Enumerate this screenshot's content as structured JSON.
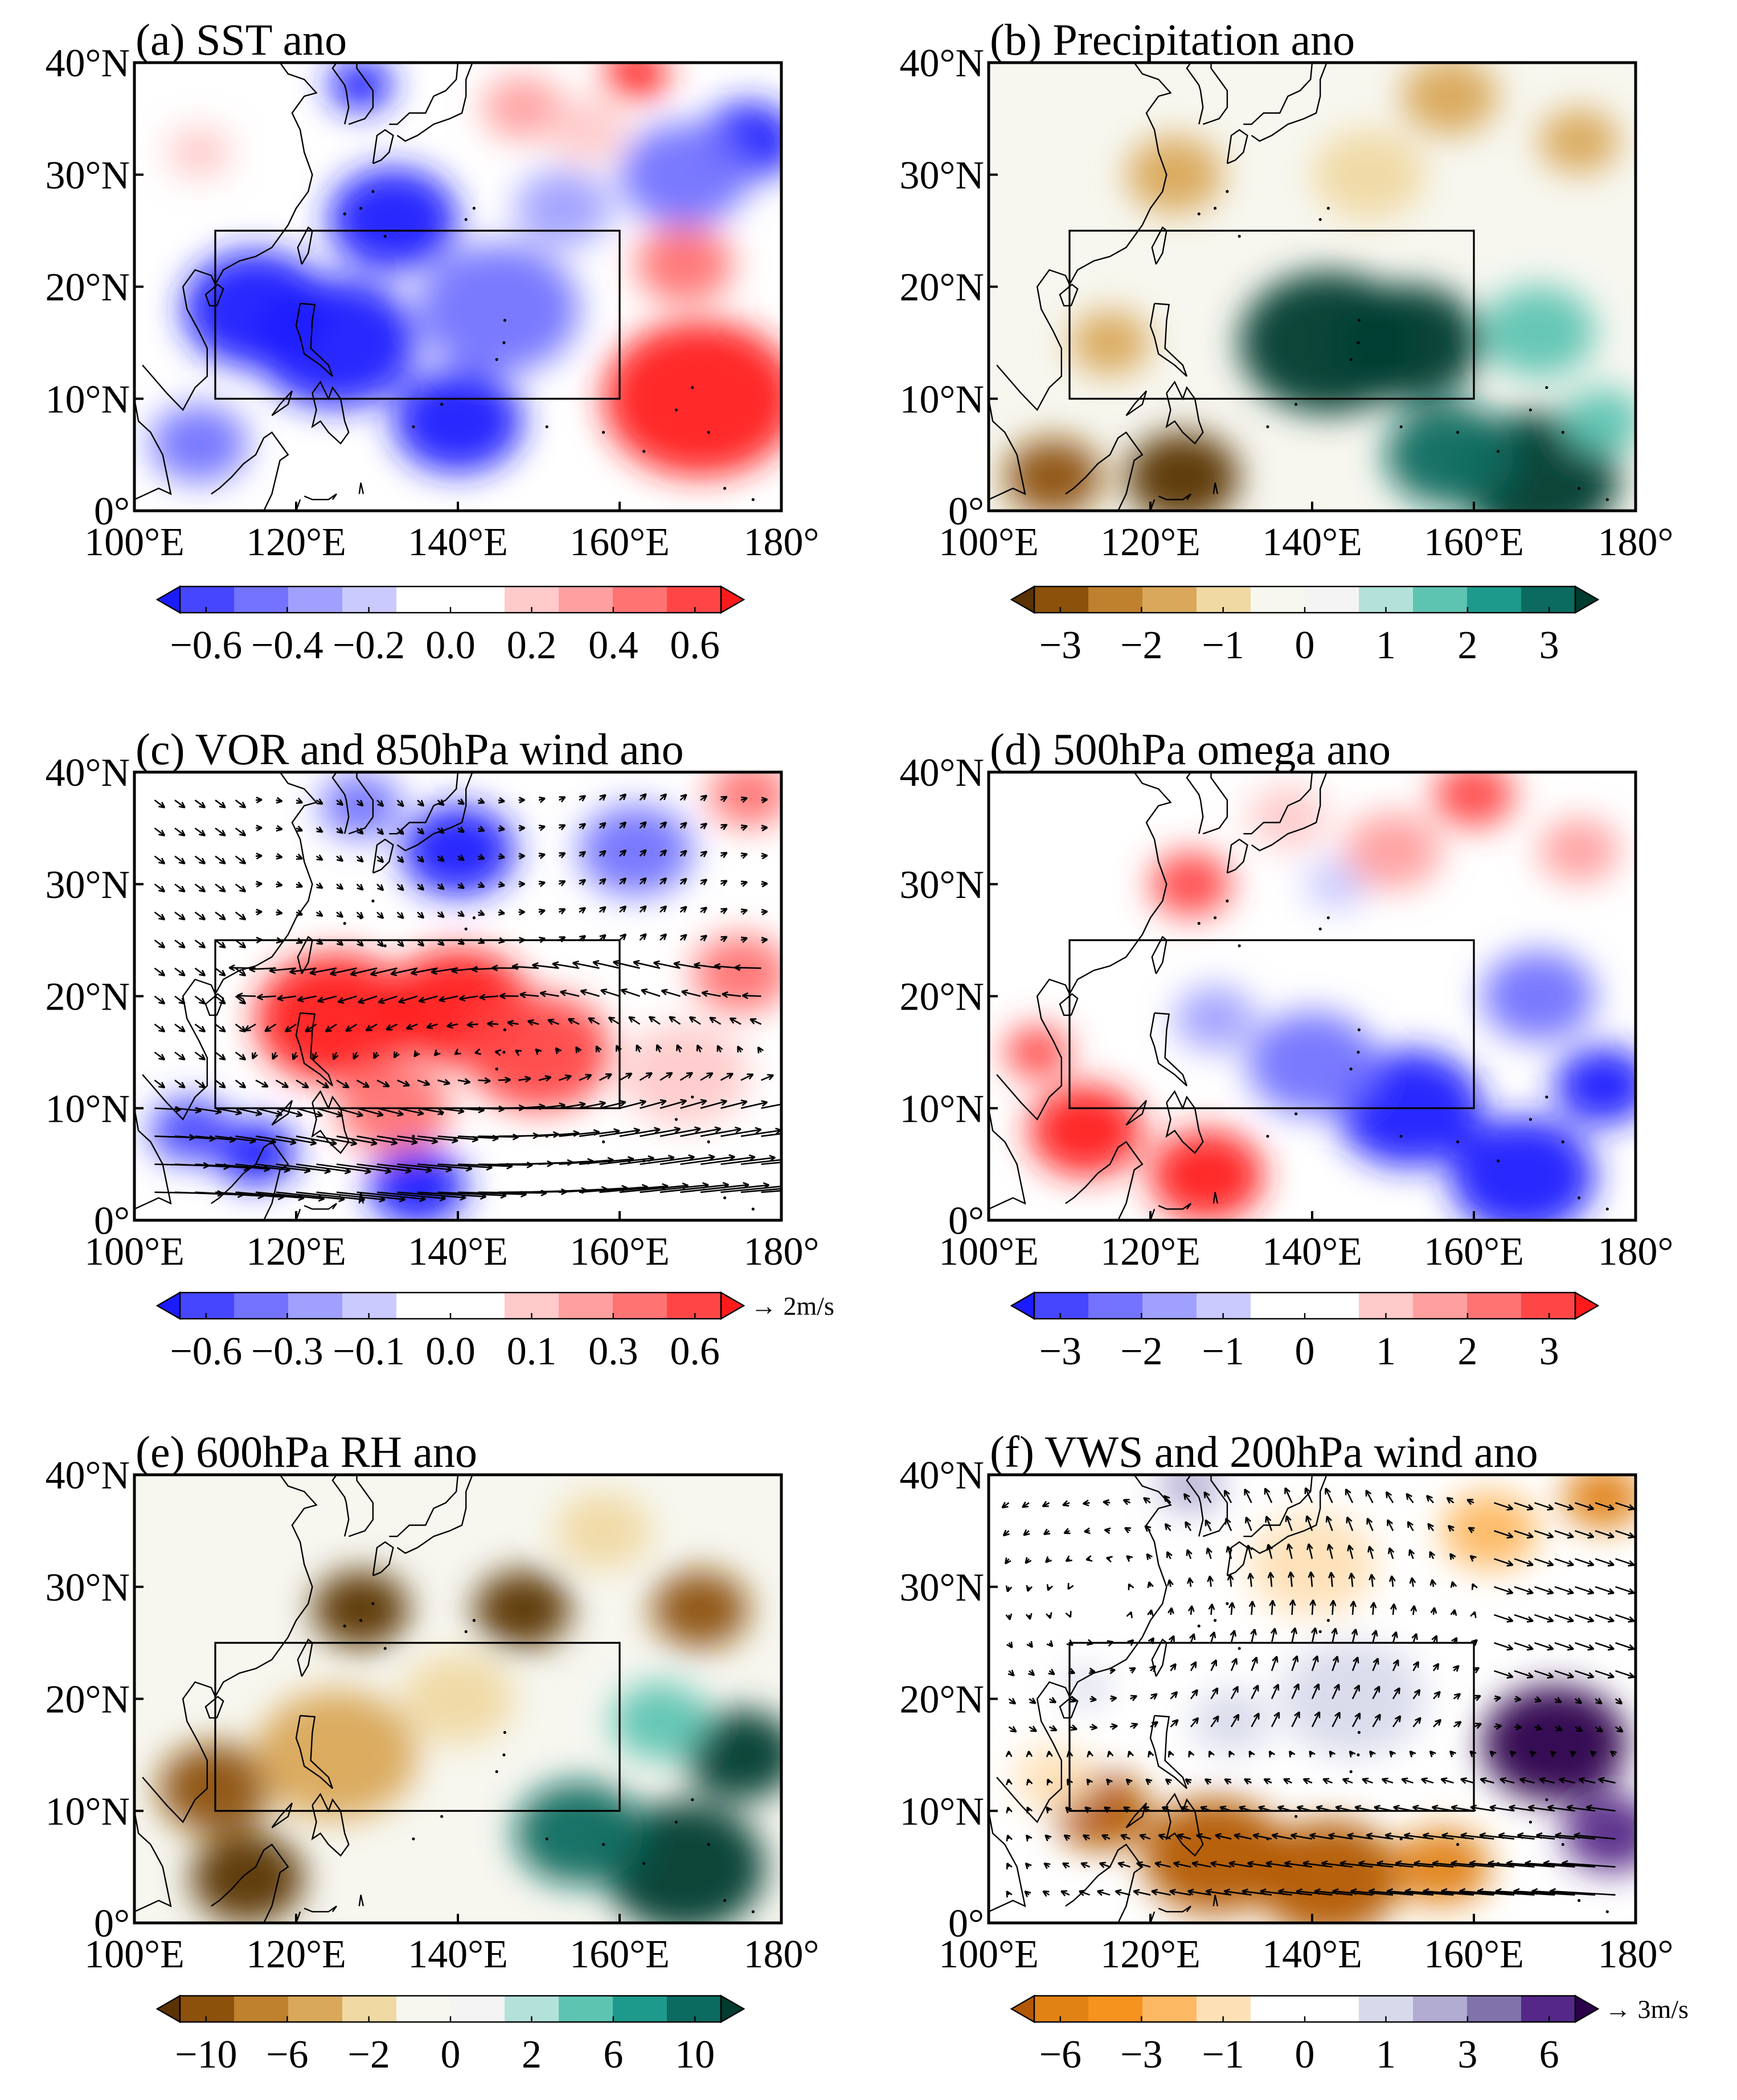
{
  "chart_data": [
    {
      "panel": "a",
      "type": "heatmap",
      "title": "(a) SST ano",
      "x_ticks": [
        "100°E",
        "120°E",
        "140°E",
        "160°E",
        "180°"
      ],
      "y_ticks": [
        "0°",
        "10°N",
        "20°N",
        "30°N",
        "40°N"
      ],
      "xlim": [
        100,
        180
      ],
      "ylim": [
        0,
        40
      ],
      "box": {
        "lon": [
          110,
          160
        ],
        "lat": [
          10,
          25
        ]
      },
      "colorbar": {
        "ticks": [
          "−0.6",
          "−0.4",
          "−0.2",
          "0.0",
          "0.2",
          "0.4",
          "0.6"
        ],
        "colors": [
          "#1b1bff",
          "#4646ff",
          "#7373ff",
          "#a0a0ff",
          "#cacaff",
          "#ffffff",
          "#ffffff",
          "#ffcaca",
          "#ffa0a0",
          "#ff7373",
          "#ff4646",
          "#ff1b1b"
        ]
      },
      "field": [
        {
          "lon": 115,
          "lat": 18,
          "value": -0.7,
          "r": 9
        },
        {
          "lon": 125,
          "lat": 15,
          "value": -0.8,
          "r": 10
        },
        {
          "lon": 132,
          "lat": 26,
          "value": -0.7,
          "r": 8
        },
        {
          "lon": 128,
          "lat": 38,
          "value": -0.8,
          "r": 4
        },
        {
          "lon": 140,
          "lat": 8,
          "value": -0.6,
          "r": 8
        },
        {
          "lon": 145,
          "lat": 18,
          "value": -0.4,
          "r": 10
        },
        {
          "lon": 108,
          "lat": 6,
          "value": -0.4,
          "r": 6
        },
        {
          "lon": 153,
          "lat": 27,
          "value": -0.3,
          "r": 6
        },
        {
          "lon": 176,
          "lat": 33,
          "value": -0.6,
          "r": 6
        },
        {
          "lon": 168,
          "lat": 30,
          "value": -0.4,
          "r": 8
        },
        {
          "lon": 148,
          "lat": 36,
          "value": 0.3,
          "r": 5
        },
        {
          "lon": 162,
          "lat": 39,
          "value": 0.6,
          "r": 4
        },
        {
          "lon": 156,
          "lat": 34,
          "value": 0.2,
          "r": 5
        },
        {
          "lon": 170,
          "lat": 10,
          "value": 0.75,
          "r": 12
        },
        {
          "lon": 168,
          "lat": 22,
          "value": 0.35,
          "r": 6
        },
        {
          "lon": 108,
          "lat": 32,
          "value": 0.2,
          "r": 4
        }
      ]
    },
    {
      "panel": "b",
      "type": "heatmap",
      "title": "(b) Precipitation ano",
      "x_ticks": [
        "100°E",
        "120°E",
        "140°E",
        "160°E",
        "180°"
      ],
      "y_ticks": [
        "0°",
        "10°N",
        "20°N",
        "30°N",
        "40°N"
      ],
      "xlim": [
        100,
        180
      ],
      "ylim": [
        0,
        40
      ],
      "box": {
        "lon": [
          110,
          160
        ],
        "lat": [
          10,
          25
        ]
      },
      "colorbar": {
        "ticks": [
          "−3",
          "−2",
          "−1",
          "0",
          "1",
          "2",
          "3"
        ],
        "colors": [
          "#5a3204",
          "#8c510a",
          "#bf812d",
          "#d9a85a",
          "#f0d9a3",
          "#f7f7f0",
          "#f4f4f4",
          "#b3e2db",
          "#5ec4b2",
          "#1d9a8c",
          "#0b6b60",
          "#003c30"
        ]
      },
      "field": [
        {
          "lon": 142,
          "lat": 15,
          "value": 3.4,
          "r": 11
        },
        {
          "lon": 152,
          "lat": 15,
          "value": 3.2,
          "r": 9
        },
        {
          "lon": 168,
          "lat": 3,
          "value": 3.0,
          "r": 10
        },
        {
          "lon": 157,
          "lat": 5,
          "value": 2.5,
          "r": 8
        },
        {
          "lon": 168,
          "lat": 16,
          "value": 1.4,
          "r": 7
        },
        {
          "lon": 176,
          "lat": 8,
          "value": 1.2,
          "r": 5
        },
        {
          "lon": 124,
          "lat": 3,
          "value": -3.4,
          "r": 7
        },
        {
          "lon": 108,
          "lat": 3,
          "value": -2.4,
          "r": 6
        },
        {
          "lon": 115,
          "lat": 15,
          "value": -1.3,
          "r": 5
        },
        {
          "lon": 123,
          "lat": 30,
          "value": -1.2,
          "r": 6
        },
        {
          "lon": 157,
          "lat": 37,
          "value": -1.3,
          "r": 6
        },
        {
          "lon": 173,
          "lat": 33,
          "value": -1.2,
          "r": 5
        },
        {
          "lon": 147,
          "lat": 30,
          "value": -0.9,
          "r": 7
        }
      ]
    },
    {
      "panel": "c",
      "type": "heatmap",
      "title": "(c) VOR and 850hPa wind ano",
      "x_ticks": [
        "100°E",
        "120°E",
        "140°E",
        "160°E",
        "180°"
      ],
      "y_ticks": [
        "0°",
        "10°N",
        "20°N",
        "30°N",
        "40°N"
      ],
      "xlim": [
        100,
        180
      ],
      "ylim": [
        0,
        40
      ],
      "box": {
        "lon": [
          110,
          160
        ],
        "lat": [
          10,
          25
        ]
      },
      "wind_key": "→ 2m/s",
      "colorbar": {
        "ticks": [
          "−0.6",
          "−0.3",
          "−0.1",
          "0.0",
          "0.1",
          "0.3",
          "0.6"
        ],
        "colors": [
          "#1b1bff",
          "#4646ff",
          "#7373ff",
          "#a0a0ff",
          "#cacaff",
          "#ffffff",
          "#ffffff",
          "#ffcaca",
          "#ffa0a0",
          "#ff7373",
          "#ff4646",
          "#ff1b1b"
        ]
      },
      "field": [
        {
          "lon": 125,
          "lat": 18,
          "value": 0.7,
          "r": 10
        },
        {
          "lon": 140,
          "lat": 19,
          "value": 0.7,
          "r": 9
        },
        {
          "lon": 150,
          "lat": 15,
          "value": 0.5,
          "r": 9
        },
        {
          "lon": 132,
          "lat": 10,
          "value": 0.4,
          "r": 7
        },
        {
          "lon": 175,
          "lat": 22,
          "value": 0.35,
          "r": 6
        },
        {
          "lon": 168,
          "lat": 13,
          "value": 0.2,
          "r": 8
        },
        {
          "lon": 176,
          "lat": 38,
          "value": 0.35,
          "r": 5
        },
        {
          "lon": 115,
          "lat": 6,
          "value": -0.7,
          "r": 5
        },
        {
          "lon": 135,
          "lat": 3,
          "value": -0.7,
          "r": 6
        },
        {
          "lon": 107,
          "lat": 8,
          "value": -0.5,
          "r": 5
        },
        {
          "lon": 140,
          "lat": 33,
          "value": -0.6,
          "r": 7
        },
        {
          "lon": 128,
          "lat": 37,
          "value": -0.4,
          "r": 5
        },
        {
          "lon": 162,
          "lat": 33,
          "value": -0.4,
          "r": 7
        }
      ]
    },
    {
      "panel": "d",
      "type": "heatmap",
      "title": "(d) 500hPa omega ano",
      "x_ticks": [
        "100°E",
        "120°E",
        "140°E",
        "160°E",
        "180°"
      ],
      "y_ticks": [
        "0°",
        "10°N",
        "20°N",
        "30°N",
        "40°N"
      ],
      "xlim": [
        100,
        180
      ],
      "ylim": [
        0,
        40
      ],
      "box": {
        "lon": [
          110,
          160
        ],
        "lat": [
          10,
          25
        ]
      },
      "colorbar": {
        "ticks": [
          "−3",
          "−2",
          "−1",
          "0",
          "1",
          "2",
          "3"
        ],
        "colors": [
          "#1b1bff",
          "#4646ff",
          "#7373ff",
          "#a0a0ff",
          "#cacaff",
          "#ffffff",
          "#ffffff",
          "#ffcaca",
          "#ffa0a0",
          "#ff7373",
          "#ff4646",
          "#ff1b1b"
        ]
      },
      "field": [
        {
          "lon": 152,
          "lat": 10,
          "value": -3.4,
          "r": 9
        },
        {
          "lon": 166,
          "lat": 4,
          "value": -3.2,
          "r": 9
        },
        {
          "lon": 176,
          "lat": 12,
          "value": -3.0,
          "r": 6
        },
        {
          "lon": 140,
          "lat": 14,
          "value": -1.8,
          "r": 8
        },
        {
          "lon": 128,
          "lat": 18,
          "value": -1.5,
          "r": 5
        },
        {
          "lon": 168,
          "lat": 20,
          "value": -1.8,
          "r": 7
        },
        {
          "lon": 143,
          "lat": 30,
          "value": -0.9,
          "r": 4
        },
        {
          "lon": 112,
          "lat": 8,
          "value": 3.4,
          "r": 7
        },
        {
          "lon": 127,
          "lat": 4,
          "value": 3.2,
          "r": 7
        },
        {
          "lon": 106,
          "lat": 15,
          "value": 2.2,
          "r": 4
        },
        {
          "lon": 125,
          "lat": 30,
          "value": 2.5,
          "r": 5
        },
        {
          "lon": 160,
          "lat": 38,
          "value": 2.2,
          "r": 5
        },
        {
          "lon": 150,
          "lat": 33,
          "value": 1.2,
          "r": 6
        },
        {
          "lon": 173,
          "lat": 33,
          "value": 1.3,
          "r": 5
        },
        {
          "lon": 137,
          "lat": 36,
          "value": 1.0,
          "r": 5
        }
      ]
    },
    {
      "panel": "e",
      "type": "heatmap",
      "title": "(e) 600hPa RH ano",
      "x_ticks": [
        "100°E",
        "120°E",
        "140°E",
        "160°E",
        "180°"
      ],
      "y_ticks": [
        "0°",
        "10°N",
        "20°N",
        "30°N",
        "40°N"
      ],
      "xlim": [
        100,
        180
      ],
      "ylim": [
        0,
        40
      ],
      "box": {
        "lon": [
          110,
          160
        ],
        "lat": [
          10,
          25
        ]
      },
      "colorbar": {
        "ticks": [
          "−10",
          "−6",
          "−2",
          "0",
          "2",
          "6",
          "10"
        ],
        "colors": [
          "#5a3204",
          "#8c510a",
          "#bf812d",
          "#d9a85a",
          "#f0d9a3",
          "#f7f7f0",
          "#f4f4f4",
          "#b3e2db",
          "#5ec4b2",
          "#1d9a8c",
          "#0b6b60",
          "#003c30"
        ]
      },
      "field": [
        {
          "lon": 114,
          "lat": 4,
          "value": -10.5,
          "r": 7
        },
        {
          "lon": 110,
          "lat": 12,
          "value": -7.5,
          "r": 7
        },
        {
          "lon": 128,
          "lat": 28,
          "value": -9,
          "r": 6
        },
        {
          "lon": 148,
          "lat": 28,
          "value": -9,
          "r": 6
        },
        {
          "lon": 170,
          "lat": 28,
          "value": -7,
          "r": 6
        },
        {
          "lon": 125,
          "lat": 15,
          "value": -4,
          "r": 10
        },
        {
          "lon": 140,
          "lat": 20,
          "value": -3,
          "r": 7
        },
        {
          "lon": 158,
          "lat": 35,
          "value": -3,
          "r": 6
        },
        {
          "lon": 168,
          "lat": 5,
          "value": 11,
          "r": 10
        },
        {
          "lon": 175,
          "lat": 15,
          "value": 11,
          "r": 7
        },
        {
          "lon": 155,
          "lat": 8,
          "value": 7,
          "r": 8
        },
        {
          "lon": 165,
          "lat": 18,
          "value": 5,
          "r": 6
        }
      ]
    },
    {
      "panel": "f",
      "type": "heatmap",
      "title": "(f) VWS and 200hPa wind ano",
      "x_ticks": [
        "100°E",
        "120°E",
        "140°E",
        "160°E",
        "180°"
      ],
      "y_ticks": [
        "0°",
        "10°N",
        "20°N",
        "30°N",
        "40°N"
      ],
      "xlim": [
        100,
        180
      ],
      "ylim": [
        0,
        40
      ],
      "box": {
        "lon": [
          110,
          160
        ],
        "lat": [
          10,
          25
        ]
      },
      "wind_key": "→ 3m/s",
      "colorbar": {
        "ticks": [
          "−6",
          "−3",
          "−1",
          "0",
          "1",
          "3",
          "6"
        ],
        "colors": [
          "#b35806",
          "#e08214",
          "#f6921e",
          "#fdb863",
          "#fee0b6",
          "#ffffff",
          "#ffffff",
          "#d8daeb",
          "#b2abd2",
          "#8073ac",
          "#542788",
          "#2d004b"
        ]
      },
      "field": [
        {
          "lon": 128,
          "lat": 6,
          "value": -7,
          "r": 9
        },
        {
          "lon": 142,
          "lat": 4,
          "value": -7,
          "r": 9
        },
        {
          "lon": 114,
          "lat": 10,
          "value": -6,
          "r": 6
        },
        {
          "lon": 156,
          "lat": 5,
          "value": -5,
          "r": 6
        },
        {
          "lon": 176,
          "lat": 38,
          "value": -5,
          "r": 5
        },
        {
          "lon": 140,
          "lat": 32,
          "value": -2,
          "r": 8
        },
        {
          "lon": 162,
          "lat": 35,
          "value": -2.5,
          "r": 6
        },
        {
          "lon": 108,
          "lat": 13,
          "value": -1.5,
          "r": 5
        },
        {
          "lon": 170,
          "lat": 16,
          "value": 6.5,
          "r": 9
        },
        {
          "lon": 177,
          "lat": 8,
          "value": 5,
          "r": 6
        },
        {
          "lon": 145,
          "lat": 20,
          "value": 2,
          "r": 9
        },
        {
          "lon": 130,
          "lat": 18,
          "value": 1.5,
          "r": 5
        },
        {
          "lon": 125,
          "lat": 39,
          "value": 2.5,
          "r": 4
        },
        {
          "lon": 112,
          "lat": 21,
          "value": 1.5,
          "r": 3
        }
      ]
    }
  ]
}
